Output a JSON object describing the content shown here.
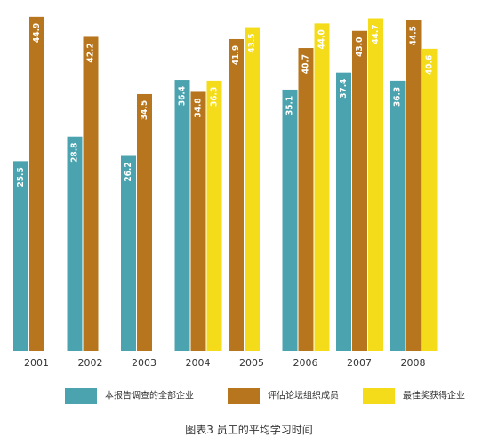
{
  "chart_data": {
    "type": "bar",
    "categories": [
      "2001",
      "2002",
      "2003",
      "2004",
      "2005",
      "2006",
      "2007",
      "2008"
    ],
    "series": [
      {
        "name": "本报告调查的全部企业",
        "color": "#4BA3AF",
        "values": [
          25.5,
          28.8,
          26.2,
          36.4,
          null,
          35.1,
          37.4,
          36.3
        ]
      },
      {
        "name": "评估论坛组织成员",
        "color": "#B7761E",
        "values": [
          44.9,
          42.2,
          34.5,
          34.8,
          41.9,
          40.7,
          43.0,
          44.5
        ]
      },
      {
        "name": "最佳奖获得企业",
        "color": "#F4DC1A",
        "values": [
          null,
          null,
          null,
          36.3,
          43.5,
          44.0,
          44.7,
          40.6
        ]
      }
    ],
    "value_labels": [
      [
        "25.5",
        "28.8",
        "26.2",
        "36.4",
        "",
        "35.1",
        "37.4",
        "36.3"
      ],
      [
        "44.9",
        "42.2",
        "34.5",
        "34.8",
        "41.9",
        "40.7",
        "43.0",
        "44.5"
      ],
      [
        "",
        "",
        "",
        "36.3",
        "43.5",
        "44.0",
        "44.7",
        "40.6"
      ]
    ],
    "ylim": [
      0,
      45
    ],
    "grid": false,
    "legend_position": "bottom"
  },
  "caption": "图表3  员工的平均学习时间"
}
